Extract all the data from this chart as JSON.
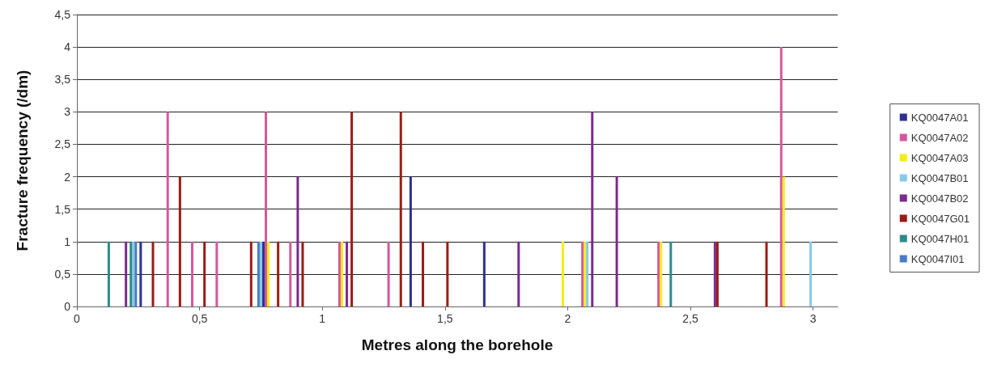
{
  "chart_data": {
    "type": "bar",
    "xlabel": "Metres along the borehole",
    "ylabel": "Fracture frequency (/dm)",
    "xlim": [
      0,
      3.1
    ],
    "xticks": [
      0,
      {
        "value": 0.5,
        "label": "0,5"
      },
      1,
      {
        "value": 1.5,
        "label": "1,5"
      },
      2,
      {
        "value": 2.5,
        "label": "2,5"
      },
      3
    ],
    "ylim": [
      0,
      4.5
    ],
    "yticks": [
      0,
      {
        "value": 0.5,
        "label": "0,5"
      },
      1,
      {
        "value": 1.5,
        "label": "1,5"
      },
      2,
      {
        "value": 2.5,
        "label": "2,5"
      },
      3,
      {
        "value": 3.5,
        "label": "3,5"
      },
      4,
      {
        "value": 4.5,
        "label": "4,5"
      }
    ],
    "grid": "y",
    "legend": "right",
    "series": [
      {
        "name": "KQ0047A01",
        "color": "#2e3192",
        "x": [
          0.26,
          0.76,
          1.36,
          1.66
        ],
        "values": [
          1,
          1,
          2,
          1
        ]
      },
      {
        "name": "KQ0047A02",
        "color": "#d6589a",
        "x": [
          0.37,
          0.47,
          0.57,
          0.77,
          0.87,
          1.07,
          1.27,
          2.06,
          2.37,
          2.87
        ],
        "values": [
          3,
          1,
          1,
          3,
          1,
          1,
          1,
          1,
          1,
          4
        ]
      },
      {
        "name": "KQ0047A03",
        "color": "#f2ec1a",
        "x": [
          0.78,
          1.08,
          1.98,
          2.07,
          2.38,
          2.88
        ],
        "values": [
          1,
          1,
          1,
          1,
          1,
          2
        ]
      },
      {
        "name": "KQ0047B01",
        "color": "#87c9e8",
        "x": [
          0.23,
          0.75,
          2.08,
          2.99
        ],
        "values": [
          1,
          1,
          1,
          1
        ]
      },
      {
        "name": "KQ0047B02",
        "color": "#7b2a8e",
        "x": [
          0.2,
          0.9,
          1.1,
          1.8,
          2.1,
          2.2,
          2.6
        ],
        "values": [
          1,
          2,
          1,
          1,
          3,
          2,
          1
        ]
      },
      {
        "name": "KQ0047G01",
        "color": "#9a1c14",
        "x": [
          0.31,
          0.42,
          0.52,
          0.71,
          0.82,
          0.92,
          1.12,
          1.32,
          1.41,
          1.51,
          2.61,
          2.81
        ],
        "values": [
          1,
          2,
          1,
          1,
          1,
          1,
          3,
          3,
          1,
          1,
          1,
          1
        ]
      },
      {
        "name": "KQ0047H01",
        "color": "#2e8b8b",
        "x": [
          0.13,
          0.22,
          2.42
        ],
        "values": [
          1,
          1,
          1
        ]
      },
      {
        "name": "KQ0047I01",
        "color": "#4a7cc4",
        "x": [
          0.24,
          0.74
        ],
        "values": [
          1,
          1
        ]
      }
    ]
  }
}
